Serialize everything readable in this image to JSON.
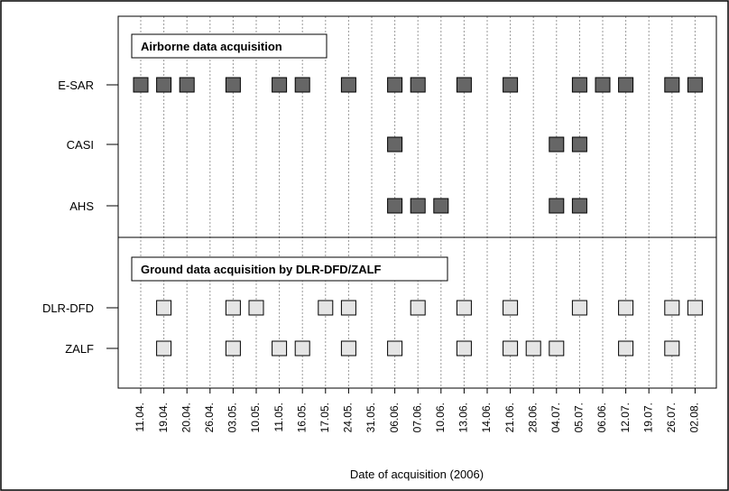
{
  "chart_data": {
    "type": "scatter",
    "xlabel": "Date of acquisition (2006)",
    "dates": [
      "11.04.",
      "19.04.",
      "20.04.",
      "26.04.",
      "03.05.",
      "10.05.",
      "11.05.",
      "16.05.",
      "17.05.",
      "24.05.",
      "31.05.",
      "06.06.",
      "07.06.",
      "10.06.",
      "13.06.",
      "14.06.",
      "21.06.",
      "28.06.",
      "04.07.",
      "05.07.",
      "06.06.",
      "12.07.",
      "19.07.",
      "26.07.",
      "02.08."
    ],
    "panels": [
      {
        "title": "Airborne data acquisition",
        "marker_color": "#666666",
        "rows": [
          {
            "label": "E-SAR",
            "acquired": [
              "11.04.",
              "19.04.",
              "20.04.",
              "03.05.",
              "11.05.",
              "16.05.",
              "24.05.",
              "06.06.",
              "07.06.",
              "13.06.",
              "21.06.",
              "05.07.",
              "06.06.",
              "12.07.",
              "26.07.",
              "02.08."
            ]
          },
          {
            "label": "CASI",
            "acquired": [
              "06.06.",
              "04.07.",
              "05.07."
            ]
          },
          {
            "label": "AHS",
            "acquired": [
              "06.06.",
              "07.06.",
              "10.06.",
              "04.07.",
              "05.07."
            ]
          }
        ]
      },
      {
        "title": "Ground data acquisition by DLR-DFD/ZALF",
        "marker_color": "#e5e5e5",
        "rows": [
          {
            "label": "DLR-DFD",
            "acquired": [
              "19.04.",
              "03.05.",
              "10.05.",
              "17.05.",
              "24.05.",
              "07.06.",
              "13.06.",
              "21.06.",
              "05.07.",
              "12.07.",
              "26.07.",
              "02.08."
            ]
          },
          {
            "label": "ZALF",
            "acquired": [
              "19.04.",
              "03.05.",
              "11.05.",
              "16.05.",
              "24.05.",
              "06.06.",
              "13.06.",
              "21.06.",
              "28.06.",
              "04.07.",
              "12.07.",
              "26.07."
            ]
          }
        ]
      }
    ],
    "grid": "vertical dotted",
    "legend": "none"
  }
}
